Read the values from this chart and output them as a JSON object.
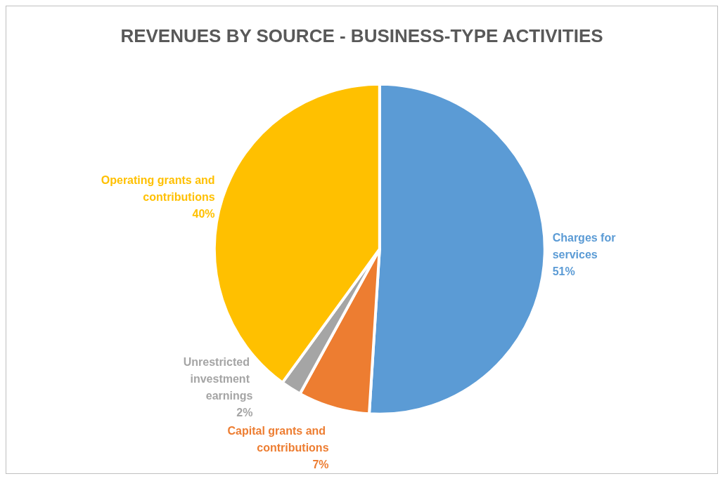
{
  "chart_data": {
    "type": "pie",
    "title": "REVENUES BY SOURCE - BUSINESS-TYPE ACTIVITIES",
    "categories": [
      "Charges for services",
      "Capital grants and contributions",
      "Unrestricted investment earnings",
      "Operating grants and contributions"
    ],
    "values": [
      51,
      7,
      2,
      40
    ],
    "value_labels": [
      "51%",
      "7%",
      "2%",
      "40%"
    ],
    "colors": [
      "#5b9bd5",
      "#ed7d31",
      "#a5a5a5",
      "#ffc000"
    ],
    "legend": false
  }
}
